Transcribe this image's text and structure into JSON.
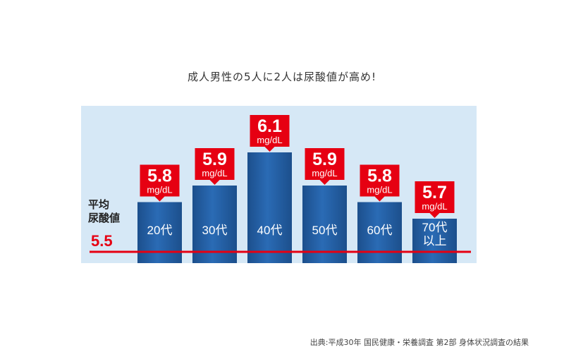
{
  "title": "成人男性の5人に2人は尿酸値が高め!",
  "source": "出典:平成30年 国民健康・栄養調査 第2部 身体状況調査の結果",
  "chart_data": {
    "type": "bar",
    "categories": [
      [
        "20代"
      ],
      [
        "30代"
      ],
      [
        "40代"
      ],
      [
        "50代"
      ],
      [
        "60代"
      ],
      [
        "70代",
        "以上"
      ]
    ],
    "values": [
      5.8,
      5.9,
      6.1,
      5.9,
      5.8,
      5.7
    ],
    "value_labels": [
      "5.8",
      "5.9",
      "6.1",
      "5.9",
      "5.8",
      "5.7"
    ],
    "unit": "mg/dL",
    "reference_line": {
      "label_lines": [
        "平均",
        "尿酸値"
      ],
      "value": 5.5,
      "value_label": "5.5"
    },
    "colors": {
      "bar": "#2a6bb5",
      "bar_dark": "#1c4f8c",
      "callout": "#e60012",
      "panel": "#d6e8f6",
      "reference": "#e60012"
    }
  }
}
